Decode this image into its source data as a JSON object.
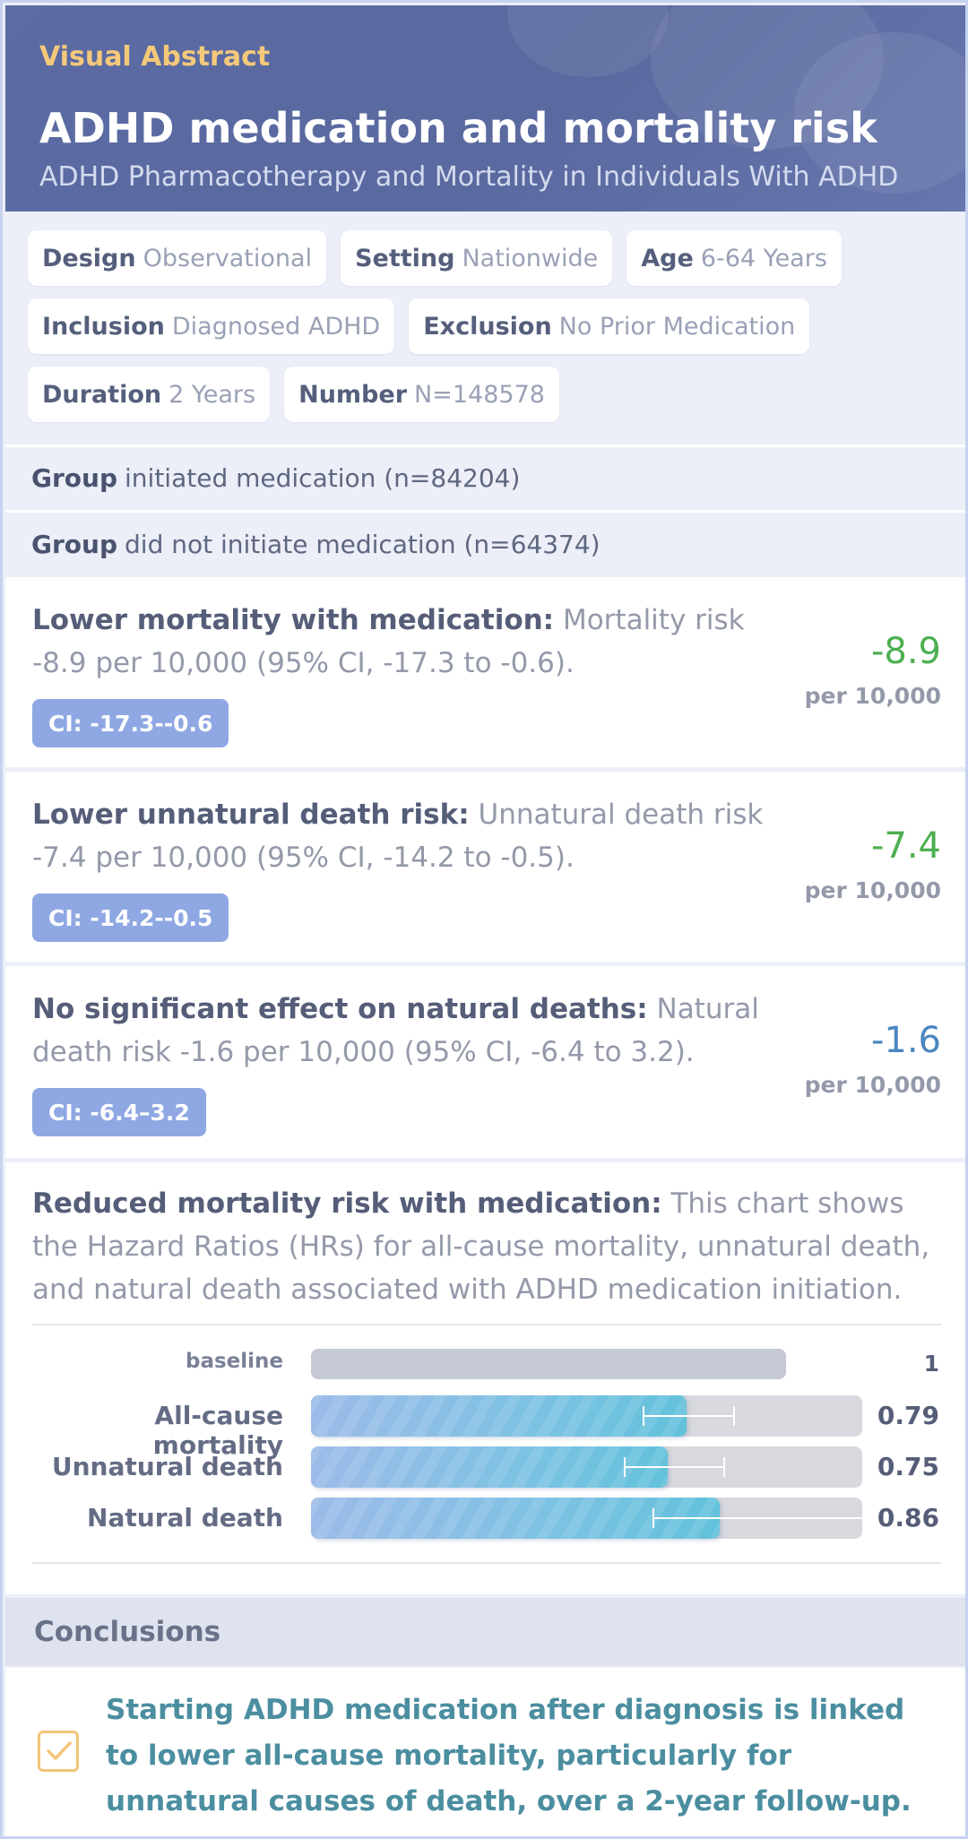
{
  "header": {
    "eyebrow": "Visual Abstract",
    "title": "ADHD medication and mortality risk",
    "subtitle": "ADHD Pharmacotherapy and Mortality in Individuals With ADHD"
  },
  "tags": [
    {
      "key": "Design",
      "value": "Observational"
    },
    {
      "key": "Setting",
      "value": "Nationwide"
    },
    {
      "key": "Age",
      "value": "6-64 Years"
    },
    {
      "key": "Inclusion",
      "value": "Diagnosed ADHD"
    },
    {
      "key": "Exclusion",
      "value": "No Prior Medication"
    },
    {
      "key": "Duration",
      "value": "2 Years"
    },
    {
      "key": "Number",
      "value": "N=148578"
    }
  ],
  "groups": [
    {
      "key": "Group",
      "value": "initiated medication (n=84204)"
    },
    {
      "key": "Group",
      "value": "did not initiate medication (n=64374)"
    }
  ],
  "results": [
    {
      "lead": "Lower mortality with medication:",
      "text": "Mortality risk -8.9 per 10,000 (95% CI, -17.3 to -0.6).",
      "ci": "CI: -17.3--0.6",
      "value": "-8.9",
      "unit": "per 10,000",
      "color": "#4caf50"
    },
    {
      "lead": "Lower unnatural death risk:",
      "text": "Unnatural death risk -7.4 per 10,000 (95% CI, -14.2 to -0.5).",
      "ci": "CI: -14.2--0.5",
      "value": "-7.4",
      "unit": "per 10,000",
      "color": "#4caf50"
    },
    {
      "lead": "No significant effect on natural deaths:",
      "text": "Natural death risk -1.6 per 10,000 (95% CI, -6.4 to 3.2).",
      "ci": "CI: -6.4–3.2",
      "value": "-1.6",
      "unit": "per 10,000",
      "color": "#4a86c0"
    }
  ],
  "chart_card": {
    "lead": "Reduced mortality risk with medication:",
    "text": "This chart shows the Hazard Ratios (HRs) for all-cause mortality, unnatural death, and natural death associated with ADHD medication initiation."
  },
  "chart_data": {
    "type": "bar",
    "orientation": "horizontal",
    "xlim": [
      0,
      1.16
    ],
    "baseline": {
      "label": "baseline",
      "value": 1,
      "display": "1"
    },
    "categories": [
      "All-cause mortality",
      "Unnatural death",
      "Natural death"
    ],
    "values": [
      0.79,
      0.75,
      0.86
    ],
    "display_values": [
      "0.79",
      "0.75",
      "0.86"
    ],
    "error_low": [
      0.7,
      0.66,
      0.72
    ],
    "error_high": [
      0.89,
      0.87,
      1.16
    ],
    "colors": {
      "bar": "#7cc2e3",
      "track": "#d8d9de",
      "baseline": "#c5c9d4"
    }
  },
  "conclusions": {
    "heading": "Conclusions",
    "text": "Starting ADHD medication after diagnosis is linked to lower all-cause mortality, particularly for unnatural causes of death, over a 2-year follow-up.",
    "icon": "checkbox-icon"
  }
}
